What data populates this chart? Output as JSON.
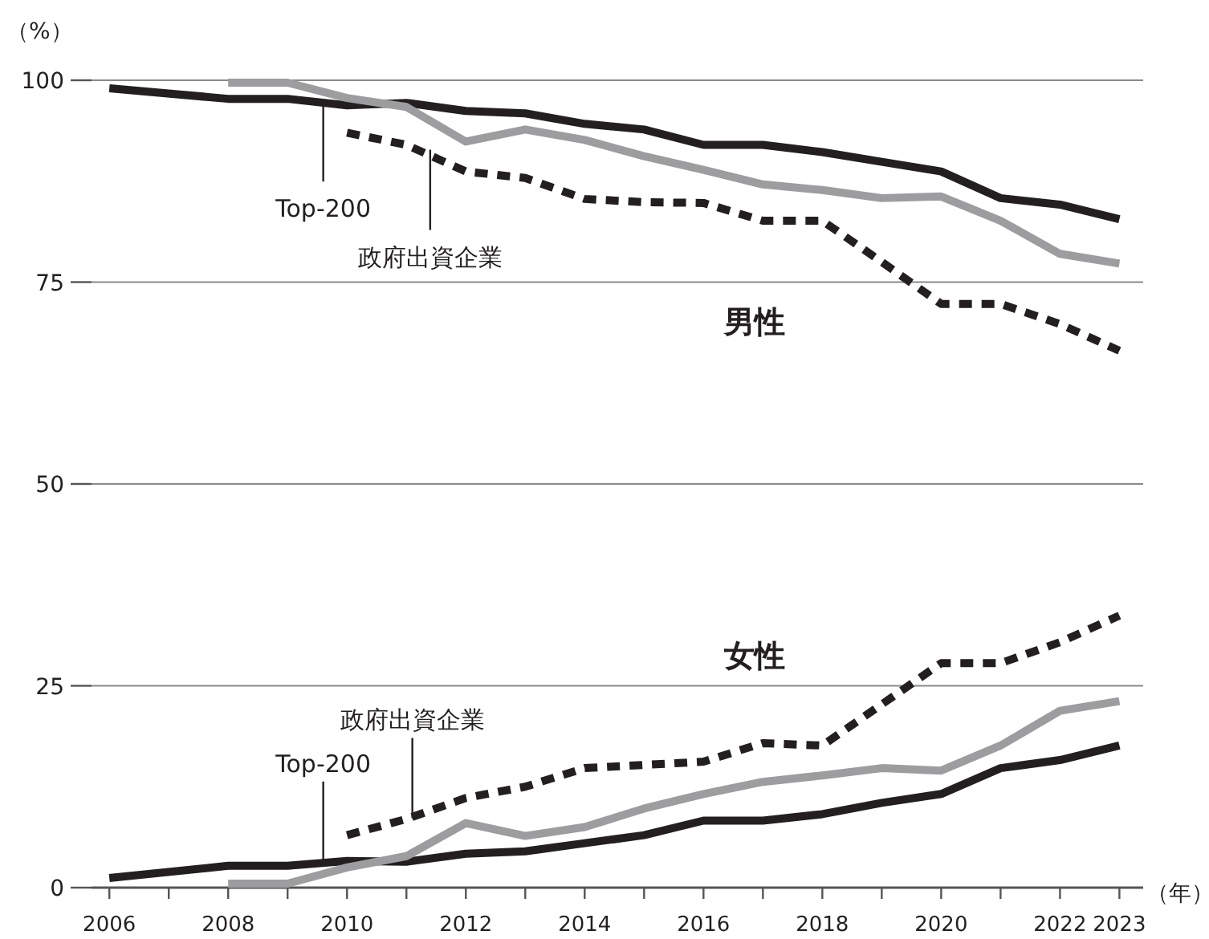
{
  "chart_data": {
    "type": "line",
    "ylabel": "（%）",
    "xlabel": "（年）",
    "xlim": [
      2005.7,
      2023.4
    ],
    "ylim": [
      0,
      100
    ],
    "yticks": [
      0,
      25,
      50,
      75,
      100
    ],
    "xticks": [
      2006,
      {
        "value": 2007,
        "label": null
      },
      2008,
      {
        "value": 2009,
        "label": null
      },
      2010,
      {
        "value": 2011,
        "label": null
      },
      2012,
      {
        "value": 2013,
        "label": null
      },
      2014,
      {
        "value": 2015,
        "label": null
      },
      2016,
      {
        "value": 2017,
        "label": null
      },
      2018,
      {
        "value": 2019,
        "label": null
      },
      2020,
      {
        "value": 2021,
        "label": null
      },
      2022,
      2023
    ],
    "grid": "y",
    "series": [
      {
        "color": "#231f20",
        "line_style": "solid",
        "x": [
          2006,
          2008,
          2009,
          2010,
          2011,
          2012,
          2013,
          2014,
          2015,
          2016,
          2017,
          2018,
          2019,
          2020,
          2021,
          2022,
          2023
        ],
        "values": [
          99.0,
          97.7,
          97.7,
          96.9,
          97.2,
          96.2,
          95.9,
          94.6,
          93.9,
          92.0,
          92.0,
          91.1,
          89.9,
          88.7,
          85.4,
          84.6,
          82.8
        ]
      },
      {
        "color": "#9d9d9f",
        "line_style": "solid",
        "x": [
          2008,
          2009,
          2010,
          2011,
          2012,
          2013,
          2014,
          2015,
          2016,
          2017,
          2018,
          2019,
          2020,
          2021,
          2022,
          2023
        ],
        "values": [
          99.7,
          99.7,
          97.8,
          96.7,
          92.4,
          93.9,
          92.6,
          90.6,
          88.9,
          87.1,
          86.4,
          85.4,
          85.6,
          82.6,
          78.5,
          77.3
        ]
      },
      {
        "color": "#231f20",
        "line_style": "dotted",
        "x": [
          2010,
          2011,
          2012,
          2013,
          2014,
          2015,
          2016,
          2017,
          2018,
          2019,
          2020,
          2021,
          2022,
          2023
        ],
        "values": [
          93.5,
          92.0,
          88.7,
          87.9,
          85.3,
          84.9,
          84.8,
          82.6,
          82.6,
          77.5,
          72.3,
          72.3,
          69.8,
          66.5
        ]
      },
      {
        "color": "#231f20",
        "line_style": "solid",
        "x": [
          2006,
          2008,
          2009,
          2010,
          2011,
          2012,
          2013,
          2014,
          2015,
          2016,
          2017,
          2018,
          2019,
          2020,
          2021,
          2022,
          2023
        ],
        "values": [
          1.2,
          2.7,
          2.7,
          3.3,
          3.2,
          4.2,
          4.5,
          5.5,
          6.5,
          8.3,
          8.3,
          9.1,
          10.5,
          11.6,
          14.8,
          15.8,
          17.6
        ]
      },
      {
        "color": "#9d9d9f",
        "line_style": "solid",
        "x": [
          2008,
          2009,
          2010,
          2011,
          2012,
          2013,
          2014,
          2015,
          2016,
          2017,
          2018,
          2019,
          2020,
          2021,
          2022,
          2023
        ],
        "values": [
          0.5,
          0.5,
          2.5,
          3.9,
          8.0,
          6.4,
          7.5,
          9.8,
          11.6,
          13.1,
          13.9,
          14.8,
          14.5,
          17.6,
          21.9,
          23.1
        ]
      },
      {
        "color": "#231f20",
        "line_style": "dotted",
        "x": [
          2010,
          2011,
          2012,
          2013,
          2014,
          2015,
          2016,
          2017,
          2018,
          2019,
          2020,
          2021,
          2022,
          2023
        ],
        "values": [
          6.5,
          8.5,
          11.1,
          12.5,
          14.8,
          15.2,
          15.6,
          17.9,
          17.6,
          22.7,
          27.8,
          27.8,
          30.4,
          33.7
        ]
      }
    ],
    "annotations": [
      {
        "text": "Top-200",
        "x": 2009.6,
        "y": 97.4
      },
      {
        "text": "政府出資企業",
        "x": 2011.4,
        "y": 91.4
      },
      {
        "text": "Top-200",
        "x": 2009.6,
        "y": 3.2
      },
      {
        "text": "政府出資企業",
        "x": 2011.1,
        "y": 8.6
      },
      "男性",
      "女性"
    ]
  }
}
